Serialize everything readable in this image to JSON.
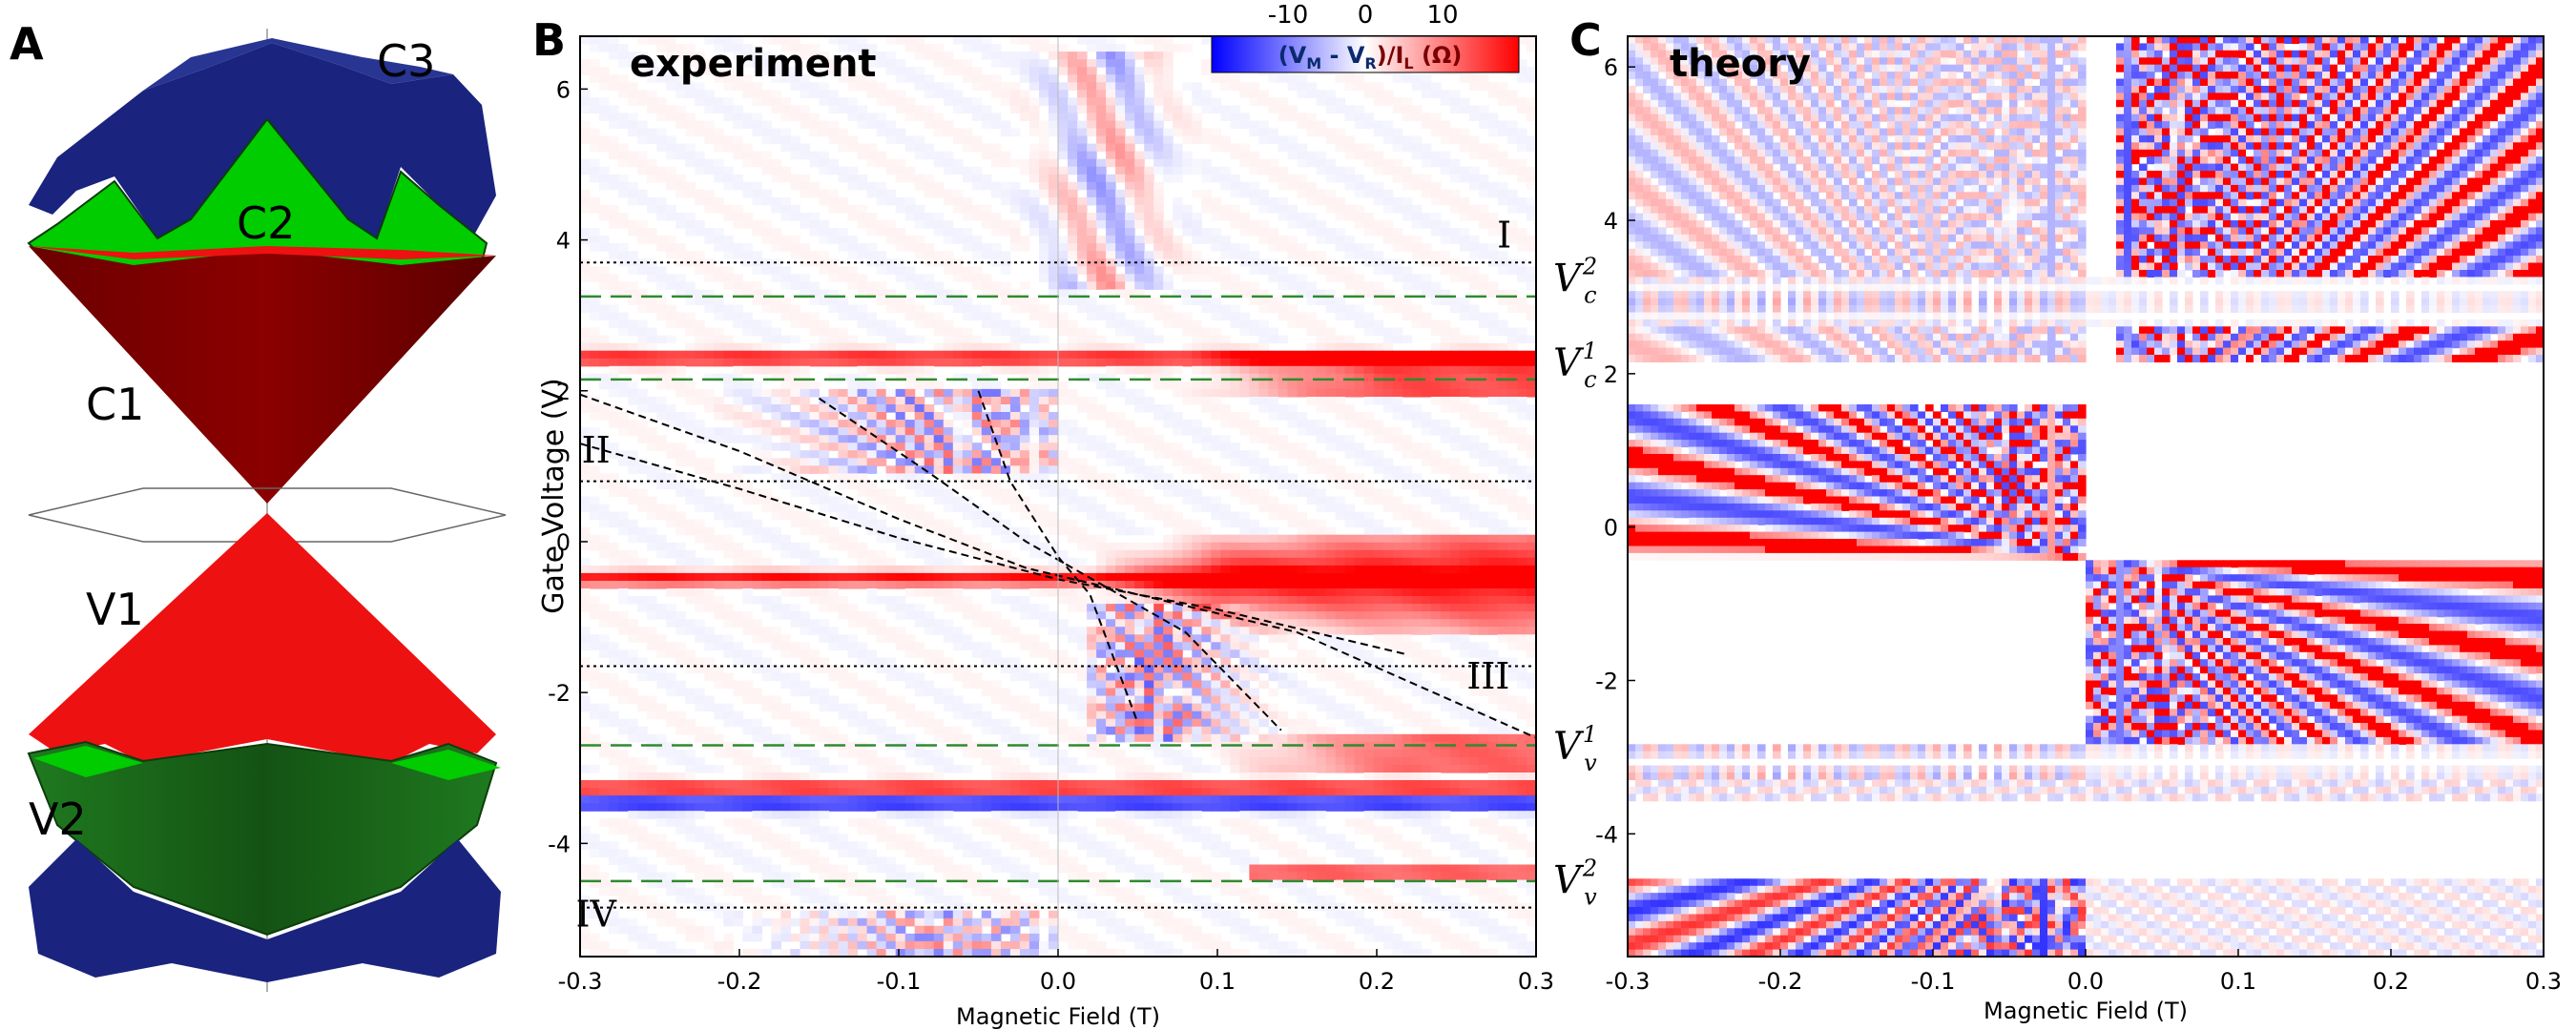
{
  "figure": {
    "panel_labels": [
      "A",
      "B",
      "C"
    ],
    "band_labels": [
      "C3",
      "C2",
      "C1",
      "V1",
      "V2"
    ]
  },
  "colors": {
    "positive": "#ff0000",
    "negative": "#0000ff",
    "band_blue": "#1a237e",
    "band_green": "#00cc00",
    "band_dark_red": "#6b0000",
    "band_red": "#ee1111",
    "band_dark_green": "#1a6b1a"
  },
  "chart_data": [
    {
      "panel": "B",
      "type": "heatmap",
      "title": "experiment",
      "xlabel": "Magnetic Field (T)",
      "ylabel": "Gate Voltage (V)",
      "xlim": [
        -0.3,
        0.3
      ],
      "ylim": [
        -5.5,
        6.7
      ],
      "xticks": [
        "-0.3",
        "-0.2",
        "-0.1",
        "0.0",
        "0.1",
        "0.2",
        "0.3"
      ],
      "xtick_values": [
        -0.3,
        -0.2,
        -0.1,
        0.0,
        0.1,
        0.2,
        0.3
      ],
      "yticks": [
        "6",
        "4",
        "2",
        "0",
        "-2",
        "-4"
      ],
      "ytick_values": [
        6,
        4,
        2,
        0,
        -2,
        -4
      ],
      "colorbar": {
        "label_parts": [
          "(V",
          "M",
          " - V",
          "R",
          ")/I",
          "L",
          " (Ω)"
        ],
        "ticks": [
          "-10",
          "0",
          "10"
        ],
        "tick_values": [
          -10,
          0,
          10
        ]
      },
      "dotted_lines": [
        3.7,
        0.8,
        -1.65,
        -4.85
      ],
      "dashed_green_lines": [
        3.25,
        2.15,
        -2.7,
        -4.5
      ],
      "strong_bands": [
        {
          "y": 2.45,
          "sign": 1
        },
        {
          "y": -0.5,
          "sign": 1
        },
        {
          "y": -3.3,
          "sign": 1
        },
        {
          "y": -3.5,
          "sign": -1
        }
      ],
      "region_labels": [
        {
          "text": "I",
          "x": 0.28,
          "y": 3.9
        },
        {
          "text": "II",
          "x": -0.29,
          "y": 1.05
        },
        {
          "text": "III",
          "x": 0.27,
          "y": -1.95
        },
        {
          "text": "IV",
          "x": -0.29,
          "y": -5.1
        }
      ]
    },
    {
      "panel": "C",
      "type": "heatmap",
      "title": "theory",
      "xlabel": "Magnetic Field (T)",
      "ylabel": "",
      "xlim": [
        -0.3,
        0.3
      ],
      "ylim": [
        -5.6,
        6.4
      ],
      "xticks": [
        "-0.3",
        "-0.2",
        "-0.1",
        "0.0",
        "0.1",
        "0.2",
        "0.3"
      ],
      "xtick_values": [
        -0.3,
        -0.2,
        -0.1,
        0.0,
        0.1,
        0.2,
        0.3
      ],
      "yticks": [
        "6",
        "4",
        "2",
        "0",
        "-2",
        "-4"
      ],
      "ytick_values": [
        6,
        4,
        2,
        0,
        -2,
        -4
      ],
      "gap_bands": [
        [
          2.65,
          3.25
        ],
        [
          1.6,
          2.15
        ],
        [
          -3.3,
          -2.85
        ],
        [
          -4.65,
          -3.6
        ]
      ],
      "edge_labels": [
        {
          "base": "V",
          "sub": "c",
          "sup": "2",
          "y": 3.25
        },
        {
          "base": "V",
          "sub": "c",
          "sup": "1",
          "y": 2.15
        },
        {
          "base": "V",
          "sub": "v",
          "sup": "1",
          "y": -2.85
        },
        {
          "base": "V",
          "sub": "v",
          "sup": "2",
          "y": -4.6
        }
      ]
    }
  ]
}
